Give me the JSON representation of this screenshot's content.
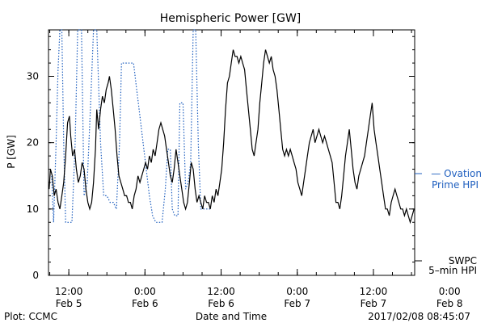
{
  "chart_data": {
    "type": "line",
    "title": "Hemispheric Power [GW]",
    "xlabel": "Date and Time",
    "ylabel": "P [GW]",
    "ylim": [
      0,
      37
    ],
    "yticks": [
      0,
      10,
      20,
      30
    ],
    "x_axis_unit": "hours from 2017-02-05 00:00 UT",
    "xlim": [
      8.8,
      66.5
    ],
    "xticks": [
      {
        "x": 12,
        "time": "12:00",
        "date": "Feb 5"
      },
      {
        "x": 24,
        "time": "0:00",
        "date": "Feb 6"
      },
      {
        "x": 36,
        "time": "12:00",
        "date": "Feb 6"
      },
      {
        "x": 48,
        "time": "0:00",
        "date": "Feb 7"
      },
      {
        "x": 60,
        "time": "12:00",
        "date": "Feb 7"
      },
      {
        "x": 72,
        "time": "0:00",
        "date": "Feb 8"
      }
    ],
    "series": [
      {
        "name": "SWPC 5-min HPI",
        "color": "#000000",
        "style": "solid",
        "points": [
          [
            8.9,
            13
          ],
          [
            9.1,
            16
          ],
          [
            9.4,
            15
          ],
          [
            9.7,
            12
          ],
          [
            10.0,
            13
          ],
          [
            10.3,
            11
          ],
          [
            10.6,
            10
          ],
          [
            10.9,
            12
          ],
          [
            11.2,
            14
          ],
          [
            11.5,
            18
          ],
          [
            11.8,
            23
          ],
          [
            12.1,
            24
          ],
          [
            12.3,
            21
          ],
          [
            12.6,
            18
          ],
          [
            12.9,
            19
          ],
          [
            13.2,
            16
          ],
          [
            13.5,
            14
          ],
          [
            13.8,
            15
          ],
          [
            14.1,
            17
          ],
          [
            14.4,
            16
          ],
          [
            14.7,
            13
          ],
          [
            15.0,
            11
          ],
          [
            15.3,
            10
          ],
          [
            15.6,
            11
          ],
          [
            15.9,
            14
          ],
          [
            16.2,
            19
          ],
          [
            16.4,
            25
          ],
          [
            16.7,
            22
          ],
          [
            17.0,
            25
          ],
          [
            17.3,
            27
          ],
          [
            17.6,
            26
          ],
          [
            17.9,
            28
          ],
          [
            18.2,
            29
          ],
          [
            18.4,
            30
          ],
          [
            18.7,
            28
          ],
          [
            19.0,
            25
          ],
          [
            19.3,
            22
          ],
          [
            19.6,
            18
          ],
          [
            19.9,
            15
          ],
          [
            20.2,
            14
          ],
          [
            20.5,
            13
          ],
          [
            20.8,
            12
          ],
          [
            21.1,
            12
          ],
          [
            21.4,
            11
          ],
          [
            21.7,
            11
          ],
          [
            22.0,
            10
          ],
          [
            22.3,
            12
          ],
          [
            22.6,
            13
          ],
          [
            22.9,
            15
          ],
          [
            23.2,
            14
          ],
          [
            23.5,
            15
          ],
          [
            23.8,
            16
          ],
          [
            24.1,
            17
          ],
          [
            24.4,
            16
          ],
          [
            24.7,
            18
          ],
          [
            25.0,
            17
          ],
          [
            25.3,
            19
          ],
          [
            25.6,
            18
          ],
          [
            25.9,
            20
          ],
          [
            26.2,
            22
          ],
          [
            26.5,
            23
          ],
          [
            26.8,
            22
          ],
          [
            27.1,
            21
          ],
          [
            27.4,
            19
          ],
          [
            27.7,
            17
          ],
          [
            28.0,
            15
          ],
          [
            28.3,
            14
          ],
          [
            28.6,
            16
          ],
          [
            28.9,
            19
          ],
          [
            29.2,
            17
          ],
          [
            29.5,
            15
          ],
          [
            29.8,
            13
          ],
          [
            30.1,
            11
          ],
          [
            30.4,
            10
          ],
          [
            30.7,
            11
          ],
          [
            31.0,
            14
          ],
          [
            31.3,
            17
          ],
          [
            31.6,
            16
          ],
          [
            31.9,
            13
          ],
          [
            32.2,
            11
          ],
          [
            32.5,
            12
          ],
          [
            32.8,
            11
          ],
          [
            33.1,
            10
          ],
          [
            33.4,
            12
          ],
          [
            33.7,
            11
          ],
          [
            34.0,
            11
          ],
          [
            34.3,
            10
          ],
          [
            34.6,
            12
          ],
          [
            34.9,
            11
          ],
          [
            35.2,
            13
          ],
          [
            35.5,
            12
          ],
          [
            35.8,
            14
          ],
          [
            36.1,
            16
          ],
          [
            36.4,
            20
          ],
          [
            36.7,
            25
          ],
          [
            37.0,
            29
          ],
          [
            37.3,
            30
          ],
          [
            37.6,
            32
          ],
          [
            37.9,
            34
          ],
          [
            38.2,
            33
          ],
          [
            38.5,
            33
          ],
          [
            38.8,
            32
          ],
          [
            39.1,
            33
          ],
          [
            39.4,
            32
          ],
          [
            39.7,
            31
          ],
          [
            40.0,
            28
          ],
          [
            40.3,
            25
          ],
          [
            40.6,
            22
          ],
          [
            40.9,
            19
          ],
          [
            41.2,
            18
          ],
          [
            41.5,
            20
          ],
          [
            41.8,
            22
          ],
          [
            42.1,
            26
          ],
          [
            42.4,
            29
          ],
          [
            42.7,
            32
          ],
          [
            43.0,
            34
          ],
          [
            43.3,
            33
          ],
          [
            43.6,
            32
          ],
          [
            43.9,
            33
          ],
          [
            44.2,
            31
          ],
          [
            44.5,
            30
          ],
          [
            44.8,
            28
          ],
          [
            45.1,
            25
          ],
          [
            45.4,
            22
          ],
          [
            45.7,
            19
          ],
          [
            46.0,
            18
          ],
          [
            46.3,
            19
          ],
          [
            46.6,
            18
          ],
          [
            46.9,
            19
          ],
          [
            47.2,
            18
          ],
          [
            47.5,
            17
          ],
          [
            47.8,
            16
          ],
          [
            48.1,
            14
          ],
          [
            48.4,
            13
          ],
          [
            48.7,
            12
          ],
          [
            49.0,
            14
          ],
          [
            49.3,
            16
          ],
          [
            49.6,
            18
          ],
          [
            49.9,
            20
          ],
          [
            50.2,
            21
          ],
          [
            50.5,
            22
          ],
          [
            50.8,
            20
          ],
          [
            51.1,
            21
          ],
          [
            51.4,
            22
          ],
          [
            51.7,
            21
          ],
          [
            52.0,
            20
          ],
          [
            52.3,
            21
          ],
          [
            52.6,
            20
          ],
          [
            52.9,
            19
          ],
          [
            53.2,
            18
          ],
          [
            53.5,
            17
          ],
          [
            53.8,
            14
          ],
          [
            54.1,
            11
          ],
          [
            54.4,
            11
          ],
          [
            54.7,
            10
          ],
          [
            55.0,
            12
          ],
          [
            55.3,
            15
          ],
          [
            55.6,
            18
          ],
          [
            55.9,
            20
          ],
          [
            56.2,
            22
          ],
          [
            56.5,
            19
          ],
          [
            56.8,
            16
          ],
          [
            57.1,
            14
          ],
          [
            57.4,
            13
          ],
          [
            57.7,
            15
          ],
          [
            58.0,
            16
          ],
          [
            58.3,
            17
          ],
          [
            58.6,
            18
          ],
          [
            58.9,
            20
          ],
          [
            59.2,
            22
          ],
          [
            59.5,
            24
          ],
          [
            59.8,
            26
          ],
          [
            60.1,
            22
          ],
          [
            60.4,
            20
          ],
          [
            60.7,
            18
          ],
          [
            61.0,
            16
          ],
          [
            61.3,
            14
          ],
          [
            61.6,
            12
          ],
          [
            61.9,
            10
          ],
          [
            62.2,
            10
          ],
          [
            62.5,
            9
          ],
          [
            62.8,
            11
          ],
          [
            63.1,
            12
          ],
          [
            63.4,
            13
          ],
          [
            63.7,
            12
          ],
          [
            64.0,
            11
          ],
          [
            64.3,
            10
          ],
          [
            64.6,
            10
          ],
          [
            64.9,
            9
          ],
          [
            65.2,
            10
          ],
          [
            65.5,
            9
          ],
          [
            65.8,
            8
          ],
          [
            66.1,
            9
          ],
          [
            66.4,
            10
          ]
        ]
      },
      {
        "name": "Ovation Prime HPI",
        "color": "#1f5fbf",
        "style": "dotted",
        "points": [
          [
            9.3,
            15
          ],
          [
            9.6,
            8
          ],
          [
            10.0,
            20
          ],
          [
            10.3,
            31
          ],
          [
            10.6,
            37
          ],
          [
            10.9,
            37
          ],
          [
            11.2,
            20
          ],
          [
            11.5,
            8
          ],
          [
            12.0,
            8
          ],
          [
            12.5,
            8
          ],
          [
            13.0,
            20
          ],
          [
            13.4,
            37
          ],
          [
            14.0,
            37
          ],
          [
            14.4,
            12
          ],
          [
            14.9,
            14
          ],
          [
            15.4,
            25
          ],
          [
            15.9,
            37
          ],
          [
            16.4,
            37
          ],
          [
            17.0,
            20
          ],
          [
            17.5,
            12
          ],
          [
            18.0,
            12
          ],
          [
            18.5,
            11
          ],
          [
            19.0,
            11
          ],
          [
            19.5,
            10
          ],
          [
            20.0,
            20
          ],
          [
            20.3,
            32
          ],
          [
            21.0,
            32
          ],
          [
            21.7,
            32
          ],
          [
            22.2,
            32
          ],
          [
            22.7,
            28
          ],
          [
            23.2,
            24
          ],
          [
            23.7,
            20
          ],
          [
            24.2,
            16
          ],
          [
            24.7,
            12
          ],
          [
            25.2,
            9
          ],
          [
            25.7,
            8
          ],
          [
            26.2,
            8
          ],
          [
            26.7,
            8
          ],
          [
            27.2,
            13
          ],
          [
            27.6,
            19
          ],
          [
            28.0,
            19
          ],
          [
            28.3,
            10
          ],
          [
            28.7,
            9
          ],
          [
            29.2,
            9
          ],
          [
            29.5,
            26
          ],
          [
            30.0,
            26
          ],
          [
            30.4,
            13
          ],
          [
            30.8,
            14
          ],
          [
            31.2,
            17
          ],
          [
            31.6,
            37
          ],
          [
            32.0,
            37
          ],
          [
            32.4,
            20
          ],
          [
            32.8,
            10
          ],
          [
            33.2,
            10
          ],
          [
            33.6,
            10
          ],
          [
            34.0,
            10
          ],
          [
            34.4,
            10
          ]
        ]
      }
    ],
    "legend": [
      {
        "line1": "— Ovation",
        "line2": "Prime HPI",
        "color": "#1f5fbf",
        "position": "right-middle"
      },
      {
        "line1": "SWPC",
        "line2": "5–min HPI",
        "color": "#000000",
        "position": "right-bottom"
      }
    ],
    "footer_left": "Plot: CCMC",
    "footer_right": "2017/02/08 08:45:07"
  }
}
